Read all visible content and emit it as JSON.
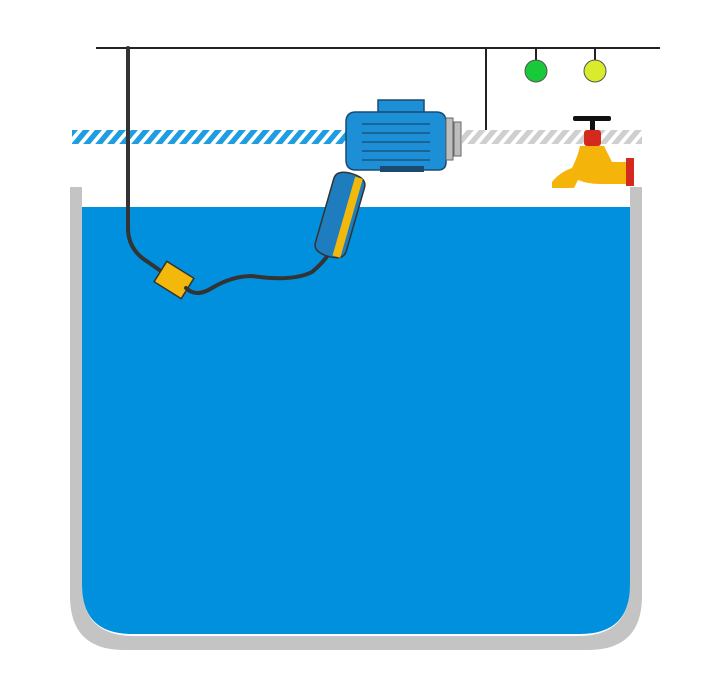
{
  "diagram": {
    "description_visible_text": "",
    "colors": {
      "background": "#ffffff",
      "tank_wall": "#c4c4c4",
      "water": "#0090dd",
      "wire": "#333333",
      "wire_line": "#222222",
      "pipe_active": "#1e9ee0",
      "pipe_inactive": "#cfcfcf",
      "motor_body": "#1d8fd6",
      "motor_stroke": "#1a4a70",
      "coupling": "#bdbdbd",
      "float_body": "#1d7dbe",
      "float_stripe": "#f2b90c",
      "weight": "#f2b90c",
      "faucet": "#f5b40a",
      "faucet_valve": "#d42a1e",
      "faucet_handle": "#111111",
      "lamp_green": "#18c93a",
      "lamp_yellow": "#d8ec2c"
    },
    "indicators": [
      {
        "name": "pump-running-lamp",
        "state": "on",
        "color": "green"
      },
      {
        "name": "level-lamp",
        "state": "on",
        "color": "yellow"
      }
    ],
    "pump": {
      "state": "running"
    },
    "float_switch": {
      "state": "tilted-up"
    }
  }
}
